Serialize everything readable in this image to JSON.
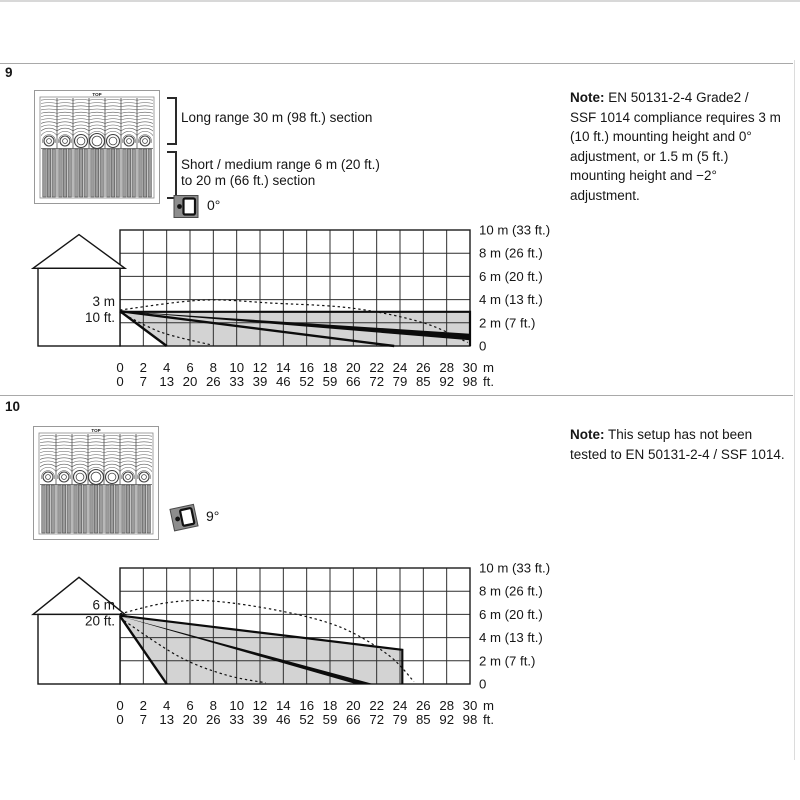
{
  "page": {
    "background": "#ffffff",
    "text_color": "#161616",
    "divider_color": "#a9a9a9",
    "zone_fill_color": "#d3d3d3"
  },
  "sections": [
    {
      "figure_number": "9",
      "lens_top_label": "TOP",
      "bracket_labels": {
        "long": "Long range 30 m (98 ft.) section",
        "short_line1": "Short / medium range 6 m (20 ft.)",
        "short_line2": "to 20 m (66 ft.) section"
      },
      "tilt": {
        "label": "0°",
        "rotation_deg": 0
      },
      "note": {
        "label": "Note:",
        "lines": [
          "EN 50131-2-4 Grade2 /",
          "SSF 1014 compliance requires 3 m",
          "(10 ft.) mounting height and 0°",
          "adjustment, or 1.5 m (5 ft.)",
          "mounting height and −2°",
          "adjustment."
        ]
      }
    },
    {
      "figure_number": "10",
      "lens_top_label": "TOP",
      "tilt": {
        "label": "9°",
        "rotation_deg": -12
      },
      "note": {
        "label": "Note:",
        "lines": [
          "This setup has not been",
          "tested to EN 50131-2-4 / SSF 1014."
        ]
      }
    }
  ],
  "chart_data": [
    {
      "type": "area",
      "figure": "9",
      "mounting_height": {
        "m": 3,
        "label_lines": [
          "3 m",
          "10 ft."
        ]
      },
      "x_range_m": [
        0,
        30
      ],
      "y_range_m": [
        0,
        10
      ],
      "x_ticks_m": [
        "0",
        "2",
        "4",
        "6",
        "8",
        "10",
        "12",
        "14",
        "16",
        "18",
        "20",
        "22",
        "24",
        "26",
        "28",
        "30"
      ],
      "x_unit_m": "m",
      "x_ticks_ft": [
        "0",
        "7",
        "13",
        "20",
        "26",
        "33",
        "39",
        "46",
        "52",
        "59",
        "66",
        "72",
        "79",
        "85",
        "92",
        "98"
      ],
      "x_unit_ft": "ft.",
      "y_labels": [
        "10 m (33 ft.)",
        "8 m (26 ft.)",
        "6 m (20 ft.)",
        "4 m (13 ft.)",
        "2 m (7 ft.)",
        "0"
      ],
      "house": {
        "wall_top_m": 6.7,
        "roof_peak_m": 9.6
      },
      "coverage": {
        "gray_zone_polygon_m": [
          [
            0,
            2.95
          ],
          [
            30,
            2.95
          ],
          [
            30,
            0
          ],
          [
            4,
            0
          ]
        ],
        "gray_zone_border_m": [
          [
            0,
            2.95
          ],
          [
            30,
            2.95
          ],
          [
            30,
            0
          ]
        ],
        "long_range_wedge_m": [
          [
            0,
            3
          ],
          [
            30,
            1.05
          ],
          [
            30,
            0.5
          ]
        ],
        "beam_lines_m": [
          [
            [
              0,
              3
            ],
            [
              23.5,
              0
            ]
          ],
          [
            [
              0,
              3
            ],
            [
              4,
              0
            ]
          ]
        ],
        "dashed_upper_m": [
          [
            0,
            3.1
          ],
          [
            7,
            3.95
          ],
          [
            13,
            3.7
          ],
          [
            20,
            3.25
          ],
          [
            26,
            2.0
          ],
          [
            29.8,
            0.3
          ]
        ],
        "dashed_lower_m": [
          [
            0,
            2.9
          ],
          [
            3.5,
            1.2
          ],
          [
            7.7,
            0.12
          ]
        ]
      }
    },
    {
      "type": "area",
      "figure": "10",
      "mounting_height": {
        "m": 6,
        "label_lines": [
          "6 m",
          "20 ft."
        ]
      },
      "x_range_m": [
        0,
        30
      ],
      "y_range_m": [
        0,
        10
      ],
      "x_ticks_m": [
        "0",
        "2",
        "4",
        "6",
        "8",
        "10",
        "12",
        "14",
        "16",
        "18",
        "20",
        "22",
        "24",
        "26",
        "28",
        "30"
      ],
      "x_unit_m": "m",
      "x_ticks_ft": [
        "0",
        "7",
        "13",
        "20",
        "26",
        "33",
        "39",
        "46",
        "52",
        "59",
        "66",
        "72",
        "79",
        "85",
        "92",
        "98"
      ],
      "x_unit_ft": "ft.",
      "y_labels": [
        "10 m (33 ft.)",
        "8 m (26 ft.)",
        "6 m (20 ft.)",
        "4 m (13 ft.)",
        "2 m (7 ft.)",
        "0"
      ],
      "house": {
        "wall_top_m": 6.0,
        "roof_peak_m": 9.2
      },
      "coverage": {
        "gray_zone_polygon_m": [
          [
            0,
            5.9
          ],
          [
            24.2,
            2.95
          ],
          [
            24.2,
            0
          ],
          [
            4,
            0
          ]
        ],
        "gray_zone_border_m": [
          [
            0,
            5.9
          ],
          [
            24.2,
            2.95
          ],
          [
            24.2,
            0
          ]
        ],
        "long_range_wedge_m": [
          [
            0,
            5.85
          ],
          [
            21.7,
            0
          ],
          [
            20.2,
            0
          ]
        ],
        "beam_lines_m": [
          [
            [
              0,
              5.85
            ],
            [
              4,
              0
            ]
          ]
        ],
        "dashed_upper_m": [
          [
            0,
            6.05
          ],
          [
            4,
            7.0
          ],
          [
            8,
            7.15
          ],
          [
            14,
            6.25
          ],
          [
            19,
            4.85
          ],
          [
            23,
            2.5
          ],
          [
            25.2,
            0.2
          ]
        ],
        "dashed_lower_m": [
          [
            0,
            5.7
          ],
          [
            5,
            2.4
          ],
          [
            9,
            0.8
          ],
          [
            12.5,
            0.1
          ]
        ]
      }
    }
  ]
}
